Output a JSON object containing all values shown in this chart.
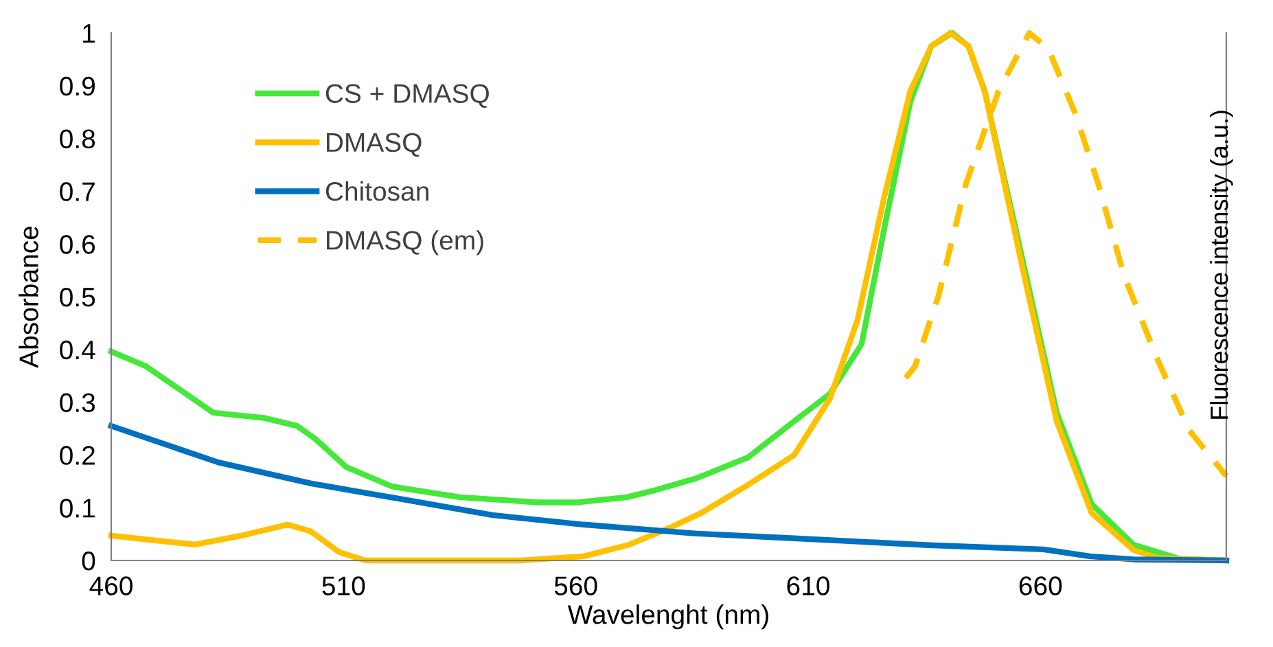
{
  "chart_data": {
    "type": "line",
    "xlabel": "Wavelenght (nm)",
    "ylabel": "Absorbance",
    "y2label": "Fluorescence intensity (a.u.)",
    "xlim": [
      460,
      700
    ],
    "xticks": [
      460,
      510,
      560,
      610,
      660
    ],
    "ylim": [
      0,
      1
    ],
    "yticks": [
      0,
      0.1,
      0.2,
      0.3,
      0.4,
      0.5,
      0.6,
      0.7,
      0.8,
      0.9,
      1
    ],
    "grid": false,
    "legend": "top left",
    "marker": "none",
    "series": [
      {
        "name": "CS + DMASQ",
        "color": "#44e83a",
        "line_style": "solid",
        "x": [
          460,
          467.5,
          482,
          493,
          500,
          504,
          510.6,
          520.5,
          535,
          552,
          560,
          571,
          577,
          586,
          597,
          607,
          614.7,
          621.5,
          626.4,
          632,
          636.5,
          641,
          644.5,
          648,
          656,
          663.5,
          671,
          680,
          690,
          700
        ],
        "values": [
          0.396,
          0.368,
          0.28,
          0.27,
          0.255,
          0.23,
          0.177,
          0.14,
          0.12,
          0.11,
          0.11,
          0.12,
          0.133,
          0.156,
          0.195,
          0.264,
          0.316,
          0.41,
          0.63,
          0.87,
          0.975,
          1.0,
          0.975,
          0.89,
          0.576,
          0.28,
          0.107,
          0.03,
          0.003,
          0
        ]
      },
      {
        "name": "DMASQ",
        "color": "#ffc000",
        "line_style": "solid",
        "x": [
          460,
          478,
          488,
          498,
          503,
          509,
          514.7,
          548,
          561.7,
          571.5,
          581,
          587,
          597,
          607,
          614.7,
          620.6,
          626.4,
          632,
          636.5,
          640.6,
          644.5,
          648,
          656,
          663.5,
          671,
          680,
          685,
          700
        ],
        "values": [
          0.047,
          0.03,
          0.047,
          0.068,
          0.055,
          0.016,
          0,
          0,
          0.008,
          0.03,
          0.065,
          0.09,
          0.143,
          0.2,
          0.307,
          0.455,
          0.69,
          0.89,
          0.975,
          1.0,
          0.975,
          0.89,
          0.56,
          0.264,
          0.09,
          0.02,
          0.005,
          0
        ]
      },
      {
        "name": "Chitosan",
        "color": "#0070c0",
        "line_style": "solid",
        "x": [
          460,
          483,
          503,
          522,
          542,
          561.7,
          586,
          607,
          636,
          660.6,
          670.6,
          680,
          700
        ],
        "values": [
          0.255,
          0.186,
          0.146,
          0.117,
          0.086,
          0.068,
          0.051,
          0.042,
          0.029,
          0.021,
          0.008,
          0.002,
          0
        ]
      },
      {
        "name": "DMASQ (em)",
        "color": "#ffc000",
        "line_style": "dashed",
        "x": [
          631,
          633,
          638,
          644,
          651,
          657.6,
          661.7,
          667.6,
          672.4,
          678,
          685,
          692,
          700
        ],
        "values": [
          0.346,
          0.368,
          0.5,
          0.715,
          0.89,
          1.0,
          0.97,
          0.845,
          0.715,
          0.54,
          0.385,
          0.247,
          0.16
        ]
      }
    ]
  }
}
